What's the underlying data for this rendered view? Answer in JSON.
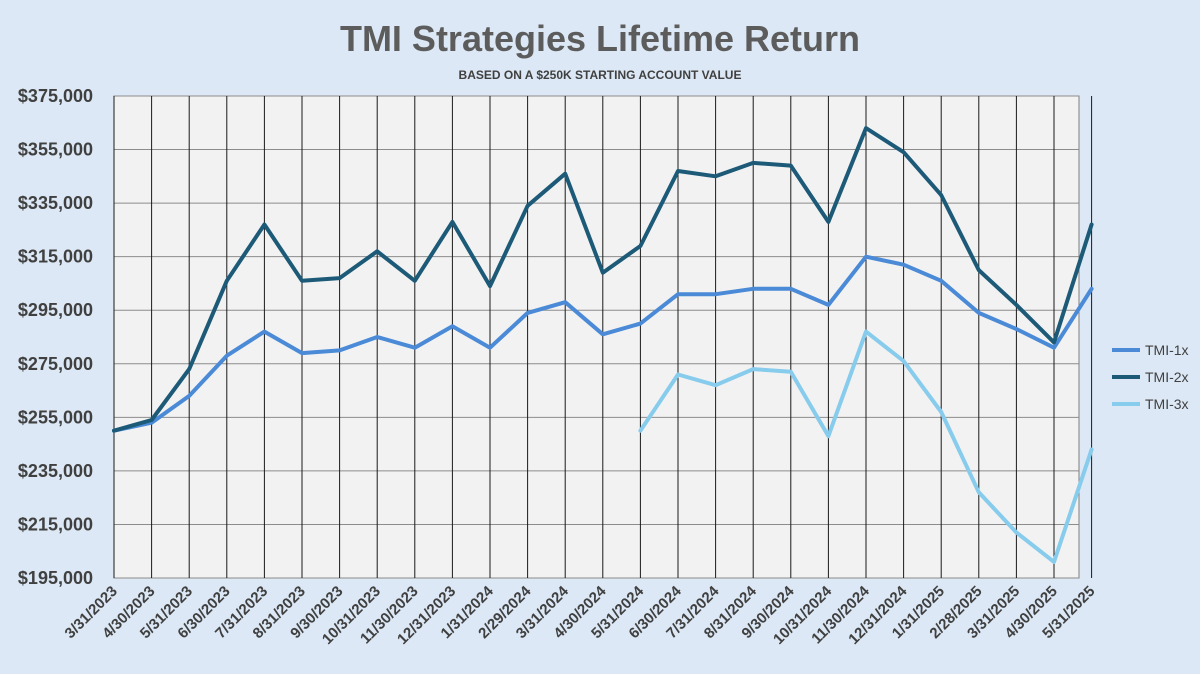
{
  "chart_data": {
    "type": "line",
    "title": "TMI Strategies Lifetime Return",
    "subtitle": "BASED ON A $250K STARTING ACCOUNT VALUE",
    "xlabel": "",
    "ylabel": "",
    "ylim": [
      195000,
      375000
    ],
    "yticks": [
      "$375,000",
      "$355,000",
      "$335,000",
      "$315,000",
      "$295,000",
      "$275,000",
      "$255,000",
      "$235,000",
      "$215,000",
      "$195,000"
    ],
    "categories": [
      "3/31/2023",
      "4/30/2023",
      "5/31/2023",
      "6/30/2023",
      "7/31/2023",
      "8/31/2023",
      "9/30/2023",
      "10/31/2023",
      "11/30/2023",
      "12/31/2023",
      "1/31/2024",
      "2/29/2024",
      "3/31/2024",
      "4/30/2024",
      "5/31/2024",
      "6/30/2024",
      "7/31/2024",
      "8/31/2024",
      "9/30/2024",
      "10/31/2024",
      "11/30/2024",
      "12/31/2024",
      "1/31/2025",
      "2/28/2025",
      "3/31/2025",
      "4/30/2025",
      "5/31/2025"
    ],
    "series": [
      {
        "name": "TMI-1x",
        "color": "#4a8ad6",
        "values": [
          250000,
          253000,
          263000,
          278000,
          287000,
          279000,
          280000,
          285000,
          281000,
          289000,
          281000,
          294000,
          298000,
          286000,
          290000,
          301000,
          301000,
          303000,
          303000,
          297000,
          315000,
          312000,
          306000,
          294000,
          288000,
          281000,
          303000
        ]
      },
      {
        "name": "TMI-2x",
        "color": "#1c5a78",
        "values": [
          250000,
          254000,
          273000,
          306000,
          327000,
          306000,
          307000,
          317000,
          306000,
          328000,
          304000,
          334000,
          346000,
          309000,
          319000,
          347000,
          345000,
          350000,
          349000,
          328000,
          363000,
          354000,
          338000,
          310000,
          297000,
          283000,
          327000
        ]
      },
      {
        "name": "TMI-3x",
        "color": "#87ccec",
        "values": [
          null,
          null,
          null,
          null,
          null,
          null,
          null,
          null,
          null,
          null,
          null,
          null,
          null,
          null,
          250000,
          271000,
          267000,
          273000,
          272000,
          248000,
          287000,
          276000,
          257000,
          227000,
          212000,
          201000,
          243000
        ]
      }
    ],
    "grid": true,
    "legend": "right"
  }
}
